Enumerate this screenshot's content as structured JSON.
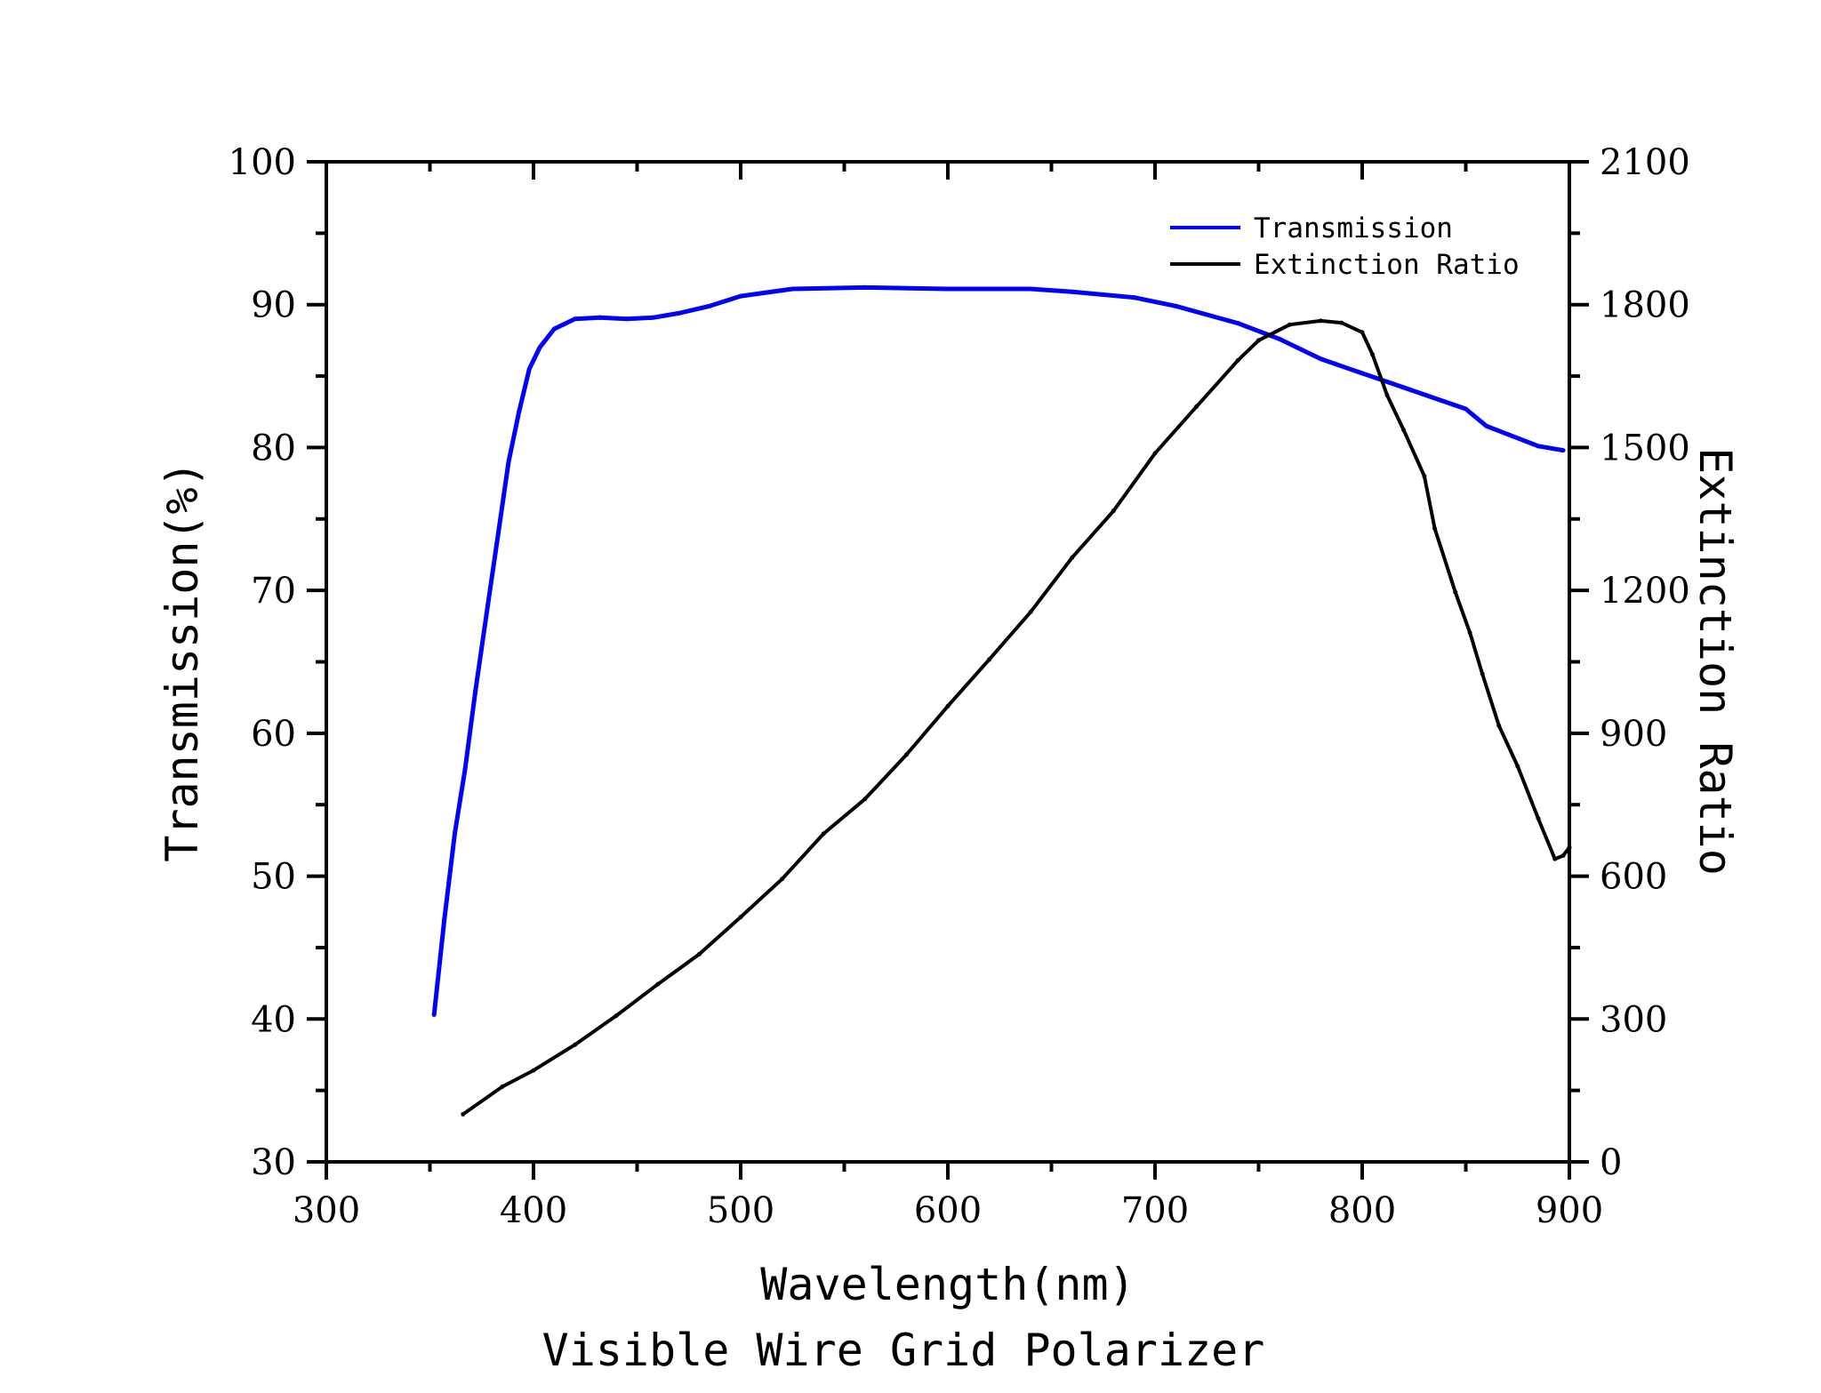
{
  "chart_data": {
    "type": "line",
    "title": "Visible Wire Grid Polarizer",
    "xlabel": "Wavelength(nm)",
    "ylabel": "Transmission(%)",
    "ylabel_right": "Extinction Ratio",
    "xlim": [
      300,
      900
    ],
    "ylim": [
      30,
      100
    ],
    "ylim_right": [
      0,
      2100
    ],
    "xticks": [
      300,
      400,
      500,
      600,
      700,
      800,
      900
    ],
    "yticks": [
      30,
      40,
      50,
      60,
      70,
      80,
      90,
      100
    ],
    "yticks_right": [
      0,
      300,
      600,
      900,
      1200,
      1500,
      1800,
      2100
    ],
    "grid": false,
    "legend_position": "top-right",
    "series": [
      {
        "name": "Transmission",
        "axis": "left",
        "color": "#0000ff",
        "x": [
          352,
          357,
          362,
          367,
          372,
          378,
          383,
          388,
          393,
          398,
          403,
          410,
          420,
          432,
          445,
          458,
          470,
          485,
          500,
          525,
          560,
          600,
          640,
          660,
          690,
          710,
          740,
          760,
          780,
          800,
          820,
          850,
          860,
          885,
          897
        ],
        "y": [
          40.3,
          47,
          53,
          57.5,
          63,
          69,
          74,
          79,
          82.5,
          85.5,
          87,
          88.3,
          89.0,
          89.1,
          89.0,
          89.1,
          89.4,
          89.9,
          90.6,
          91.1,
          91.2,
          91.1,
          91.1,
          90.9,
          90.5,
          89.9,
          88.7,
          87.6,
          86.2,
          85.2,
          84.2,
          82.7,
          81.5,
          80.1,
          79.8
        ]
      },
      {
        "name": "Extinction Ratio",
        "axis": "right",
        "color": "#000000",
        "x": [
          366,
          385,
          400,
          420,
          440,
          460,
          480,
          500,
          520,
          540,
          560,
          580,
          600,
          620,
          640,
          660,
          680,
          700,
          720,
          740,
          750,
          765,
          780,
          790,
          800,
          805,
          812,
          820,
          830,
          835,
          845,
          852,
          858,
          866,
          875,
          885,
          893,
          897,
          900
        ],
        "y": [
          100,
          158,
          192,
          246,
          307,
          373,
          436,
          514,
          594,
          689,
          762,
          855,
          957,
          1055,
          1155,
          1269,
          1367,
          1488,
          1586,
          1683,
          1725,
          1758,
          1766,
          1762,
          1742,
          1695,
          1610,
          1537,
          1440,
          1330,
          1196,
          1111,
          1025,
          916,
          831,
          721,
          636,
          643,
          660
        ]
      }
    ]
  }
}
